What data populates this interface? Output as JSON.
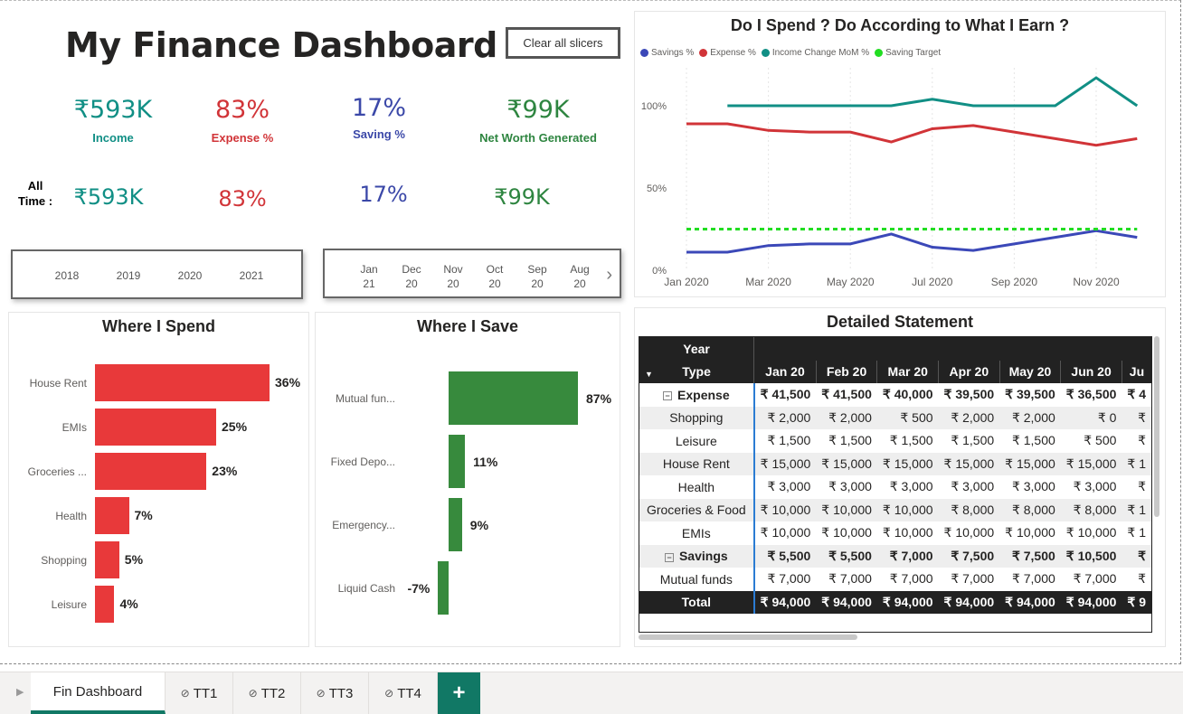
{
  "dashboard": {
    "title": "My Finance Dashboard",
    "clear_button": "Clear all slicers",
    "all_time_label_1": "All",
    "all_time_label_2": "Time :"
  },
  "kpis": [
    {
      "value": "₹593K",
      "label": "Income",
      "color": "#118f85",
      "all_time": "₹593K"
    },
    {
      "value": "83%",
      "label": "Expense %",
      "color": "#d13438",
      "all_time": "83%"
    },
    {
      "value": "17%",
      "label": "Saving %",
      "color": "#3b48a8",
      "all_time": "17%"
    },
    {
      "value": "₹99K",
      "label": "Net Worth Generated",
      "color": "#2e8540",
      "all_time": "₹99K"
    }
  ],
  "year_slicer": [
    "2018",
    "2019",
    "2020",
    "2021"
  ],
  "month_slicer": [
    {
      "m": "Jan",
      "y": "21"
    },
    {
      "m": "Dec",
      "y": "20"
    },
    {
      "m": "Nov",
      "y": "20"
    },
    {
      "m": "Oct",
      "y": "20"
    },
    {
      "m": "Sep",
      "y": "20"
    },
    {
      "m": "Aug",
      "y": "20"
    }
  ],
  "spend": {
    "title": "Where I Spend",
    "color": "#e8393a",
    "items": [
      {
        "label": "House Rent",
        "value": 36,
        "text": "36%"
      },
      {
        "label": "EMIs",
        "value": 25,
        "text": "25%"
      },
      {
        "label": "Groceries ...",
        "value": 23,
        "text": "23%"
      },
      {
        "label": "Health",
        "value": 7,
        "text": "7%"
      },
      {
        "label": "Shopping",
        "value": 5,
        "text": "5%"
      },
      {
        "label": "Leisure",
        "value": 4,
        "text": "4%"
      }
    ]
  },
  "save": {
    "title": "Where I Save",
    "color": "#378a3d",
    "items": [
      {
        "label": "Mutual fun...",
        "value": 87,
        "text": "87%"
      },
      {
        "label": "Fixed Depo...",
        "value": 11,
        "text": "11%"
      },
      {
        "label": "Emergency...",
        "value": 9,
        "text": "9%"
      },
      {
        "label": "Liquid Cash",
        "value": -7,
        "text": "-7%"
      }
    ]
  },
  "line_chart": {
    "title": "Do I Spend ? Do According to What I Earn ?",
    "legend": [
      {
        "name": "Savings %",
        "color": "#3b48b8"
      },
      {
        "name": "Expense %",
        "color": "#d13438"
      },
      {
        "name": "Income Change MoM %",
        "color": "#118f85"
      },
      {
        "name": "Saving Target",
        "color": "#22dd22"
      }
    ],
    "y_ticks": [
      "100%",
      "50%",
      "0%"
    ],
    "x_ticks": [
      "Jan 2020",
      "Mar 2020",
      "May 2020",
      "Jul 2020",
      "Sep 2020",
      "Nov 2020"
    ]
  },
  "chart_data": {
    "type": "line",
    "x": [
      "Jan 2020",
      "Feb 2020",
      "Mar 2020",
      "Apr 2020",
      "May 2020",
      "Jun 2020",
      "Jul 2020",
      "Aug 2020",
      "Sep 2020",
      "Oct 2020",
      "Nov 2020",
      "Dec 2020"
    ],
    "ylim": [
      0,
      120
    ],
    "series": [
      {
        "name": "Savings %",
        "color": "#3b48b8",
        "values": [
          11,
          11,
          15,
          16,
          16,
          22,
          14,
          12,
          16,
          20,
          24,
          20
        ]
      },
      {
        "name": "Expense %",
        "color": "#d13438",
        "values": [
          89,
          89,
          85,
          84,
          84,
          78,
          86,
          88,
          84,
          80,
          76,
          80
        ]
      },
      {
        "name": "Income Change MoM %",
        "color": "#118f85",
        "values": [
          null,
          100,
          100,
          100,
          100,
          100,
          104,
          100,
          100,
          100,
          117,
          100
        ]
      },
      {
        "name": "Saving Target",
        "color": "#22dd22",
        "values": [
          25,
          25,
          25,
          25,
          25,
          25,
          25,
          25,
          25,
          25,
          25,
          25
        ],
        "dashed": true
      }
    ]
  },
  "statement": {
    "title": "Detailed Statement",
    "year_header": "Year",
    "type_header": "Type",
    "months": [
      "Jan 20",
      "Feb 20",
      "Mar 20",
      "Apr 20",
      "May 20",
      "Jun 20",
      "Ju"
    ],
    "rows": [
      {
        "name": "Expense",
        "group": true,
        "expander": "⊟",
        "vals": [
          "₹ 41,500",
          "₹ 41,500",
          "₹ 40,000",
          "₹ 39,500",
          "₹ 39,500",
          "₹ 36,500",
          "₹ 4"
        ]
      },
      {
        "name": "Shopping",
        "vals": [
          "₹ 2,000",
          "₹ 2,000",
          "₹ 500",
          "₹ 2,000",
          "₹ 2,000",
          "₹ 0",
          "₹"
        ]
      },
      {
        "name": "Leisure",
        "vals": [
          "₹ 1,500",
          "₹ 1,500",
          "₹ 1,500",
          "₹ 1,500",
          "₹ 1,500",
          "₹ 500",
          "₹"
        ]
      },
      {
        "name": "House Rent",
        "vals": [
          "₹ 15,000",
          "₹ 15,000",
          "₹ 15,000",
          "₹ 15,000",
          "₹ 15,000",
          "₹ 15,000",
          "₹ 1"
        ]
      },
      {
        "name": "Health",
        "vals": [
          "₹ 3,000",
          "₹ 3,000",
          "₹ 3,000",
          "₹ 3,000",
          "₹ 3,000",
          "₹ 3,000",
          "₹"
        ]
      },
      {
        "name": "Groceries & Food",
        "vals": [
          "₹ 10,000",
          "₹ 10,000",
          "₹ 10,000",
          "₹ 8,000",
          "₹ 8,000",
          "₹ 8,000",
          "₹ 1"
        ]
      },
      {
        "name": "EMIs",
        "vals": [
          "₹ 10,000",
          "₹ 10,000",
          "₹ 10,000",
          "₹ 10,000",
          "₹ 10,000",
          "₹ 10,000",
          "₹ 1"
        ]
      },
      {
        "name": "Savings",
        "group": true,
        "expander": "⊟",
        "vals": [
          "₹ 5,500",
          "₹ 5,500",
          "₹ 7,000",
          "₹ 7,500",
          "₹ 7,500",
          "₹ 10,500",
          "₹"
        ]
      },
      {
        "name": "Mutual funds",
        "vals": [
          "₹ 7,000",
          "₹ 7,000",
          "₹ 7,000",
          "₹ 7,000",
          "₹ 7,000",
          "₹ 7,000",
          "₹"
        ]
      }
    ],
    "total": {
      "name": "Total",
      "vals": [
        "₹ 94,000",
        "₹ 94,000",
        "₹ 94,000",
        "₹ 94,000",
        "₹ 94,000",
        "₹ 94,000",
        "₹ 9"
      ]
    }
  },
  "tabs": [
    {
      "label": "Fin Dashboard",
      "active": true,
      "hidden": false
    },
    {
      "label": "TT1",
      "active": false,
      "hidden": true
    },
    {
      "label": "TT2",
      "active": false,
      "hidden": true
    },
    {
      "label": "TT3",
      "active": false,
      "hidden": true
    },
    {
      "label": "TT4",
      "active": false,
      "hidden": true
    }
  ],
  "add_tab": "+"
}
